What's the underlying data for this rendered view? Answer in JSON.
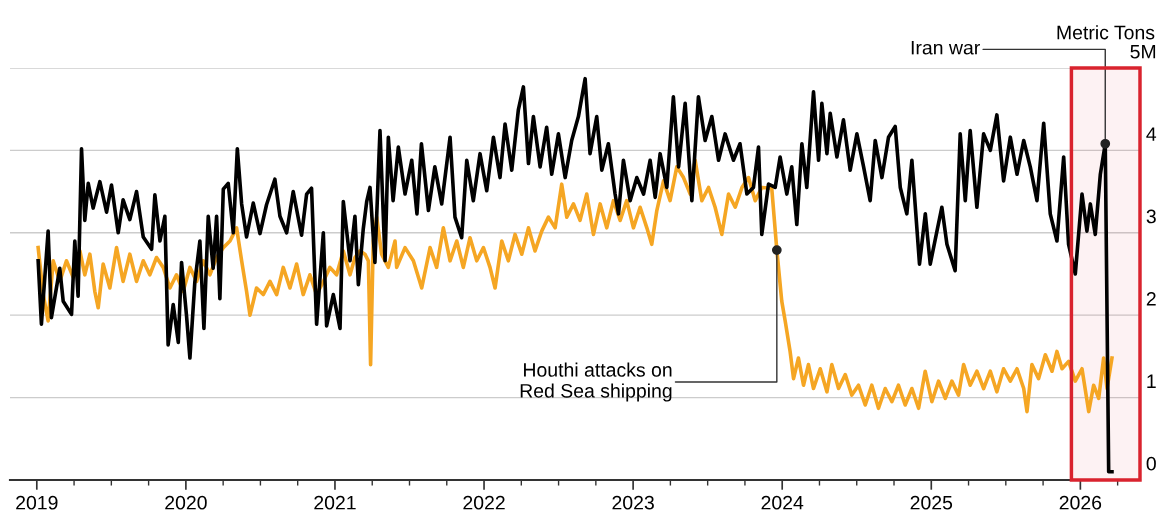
{
  "chart_data": {
    "type": "line",
    "ylabel": "Metric Tons",
    "xlim": [
      2018.82,
      2026.4
    ],
    "ylim": [
      0,
      5
    ],
    "xticks": [
      2019,
      {
        "value": 2019.25,
        "label": null
      },
      {
        "value": 2019.5,
        "label": null
      },
      {
        "value": 2019.75,
        "label": null
      },
      2020,
      {
        "value": 2020.25,
        "label": null
      },
      {
        "value": 2020.5,
        "label": null
      },
      {
        "value": 2020.75,
        "label": null
      },
      2021,
      {
        "value": 2021.25,
        "label": null
      },
      {
        "value": 2021.5,
        "label": null
      },
      {
        "value": 2021.75,
        "label": null
      },
      2022,
      {
        "value": 2022.25,
        "label": null
      },
      {
        "value": 2022.5,
        "label": null
      },
      {
        "value": 2022.75,
        "label": null
      },
      2023,
      {
        "value": 2023.25,
        "label": null
      },
      {
        "value": 2023.5,
        "label": null
      },
      {
        "value": 2023.75,
        "label": null
      },
      2024,
      {
        "value": 2024.25,
        "label": null
      },
      {
        "value": 2024.5,
        "label": null
      },
      {
        "value": 2024.75,
        "label": null
      },
      2025,
      {
        "value": 2025.25,
        "label": null
      },
      {
        "value": 2025.5,
        "label": null
      },
      {
        "value": 2025.75,
        "label": null
      },
      2026,
      {
        "value": 2026.25,
        "label": null
      }
    ],
    "yticks": [
      0,
      1,
      2,
      3,
      4,
      {
        "value": 5,
        "label": "5M"
      }
    ],
    "grid": "y",
    "legend": false,
    "marker": "none",
    "line_style": "solid",
    "bands": [
      {
        "axis": "x",
        "from": 2025.94,
        "to": 2026.4,
        "label": null,
        "color": "#d9232e"
      }
    ],
    "annotations": [
      {
        "text": "Houthi attacks on\nRed Sea shipping",
        "x": 2023.964,
        "y": 2.79
      },
      {
        "text": "Iran war",
        "x": 2026.167,
        "y": 4.08
      }
    ],
    "series": [
      {
        "color": "#f5a623",
        "x": [
          2019.009,
          2019.043,
          2019.076,
          2019.11,
          2019.154,
          2019.199,
          2019.244,
          2019.289,
          2019.322,
          2019.356,
          2019.389,
          2019.412,
          2019.445,
          2019.49,
          2019.535,
          2019.579,
          2019.624,
          2019.669,
          2019.714,
          2019.758,
          2019.803,
          2019.848,
          2019.893,
          2019.937,
          2019.982,
          2020.027,
          2020.072,
          2020.116,
          2020.161,
          2020.206,
          2020.251,
          2020.296,
          2020.34,
          2020.374,
          2020.407,
          2020.43,
          2020.474,
          2020.519,
          2020.564,
          2020.609,
          2020.653,
          2020.698,
          2020.743,
          2020.787,
          2020.832,
          2020.877,
          2020.922,
          2020.966,
          2021.011,
          2021.056,
          2021.101,
          2021.134,
          2021.168,
          2021.201,
          2021.224,
          2021.239,
          2021.257,
          2021.28,
          2021.313,
          2021.358,
          2021.403,
          2021.414,
          2021.47,
          2021.526,
          2021.582,
          2021.638,
          2021.682,
          2021.727,
          2021.772,
          2021.817,
          2021.861,
          2021.906,
          2021.951,
          2021.996,
          2022.04,
          2022.074,
          2022.119,
          2022.163,
          2022.208,
          2022.253,
          2022.298,
          2022.342,
          2022.387,
          2022.432,
          2022.477,
          2022.521,
          2022.555,
          2022.6,
          2022.644,
          2022.689,
          2022.734,
          2022.779,
          2022.823,
          2022.868,
          2022.913,
          2022.957,
          2023.002,
          2023.047,
          2023.092,
          2023.125,
          2023.159,
          2023.204,
          2023.248,
          2023.293,
          2023.338,
          2023.383,
          2023.416,
          2023.461,
          2023.506,
          2023.55,
          2023.595,
          2023.64,
          2023.685,
          2023.73,
          2023.774,
          2023.819,
          2023.863,
          2023.93,
          2023.964,
          2023.997,
          2024.02,
          2024.053,
          2024.076,
          2024.109,
          2024.143,
          2024.176,
          2024.21,
          2024.255,
          2024.3,
          2024.333,
          2024.378,
          2024.423,
          2024.467,
          2024.512,
          2024.557,
          2024.601,
          2024.646,
          2024.691,
          2024.736,
          2024.78,
          2024.825,
          2024.87,
          2024.915,
          2024.959,
          2025.004,
          2025.049,
          2025.094,
          2025.138,
          2025.183,
          2025.217,
          2025.261,
          2025.306,
          2025.351,
          2025.396,
          2025.44,
          2025.485,
          2025.53,
          2025.575,
          2025.62,
          2025.642,
          2025.675,
          2025.72,
          2025.765,
          2025.81,
          2025.843,
          2025.877,
          2025.921,
          2025.966,
          2026.011,
          2026.056,
          2026.089,
          2026.123,
          2026.156,
          2026.179,
          2026.212
        ],
        "values": [
          2.82,
          2.25,
          1.93,
          2.66,
          2.41,
          2.66,
          2.46,
          2.78,
          2.49,
          2.74,
          2.29,
          2.09,
          2.62,
          2.33,
          2.82,
          2.41,
          2.74,
          2.41,
          2.66,
          2.49,
          2.7,
          2.58,
          2.33,
          2.49,
          2.29,
          2.58,
          2.41,
          2.66,
          2.49,
          2.7,
          2.82,
          2.9,
          3.06,
          2.66,
          2.29,
          2.0,
          2.33,
          2.25,
          2.41,
          2.25,
          2.58,
          2.33,
          2.62,
          2.25,
          2.49,
          2.25,
          2.41,
          2.58,
          2.49,
          2.78,
          2.49,
          2.7,
          2.78,
          2.74,
          2.66,
          1.4,
          2.9,
          3.19,
          2.74,
          2.58,
          2.9,
          2.58,
          2.82,
          2.66,
          2.33,
          2.82,
          2.58,
          3.06,
          2.66,
          2.9,
          2.58,
          2.94,
          2.66,
          2.82,
          2.58,
          2.33,
          2.9,
          2.66,
          2.98,
          2.74,
          3.06,
          2.78,
          3.02,
          3.19,
          3.06,
          3.59,
          3.19,
          3.35,
          3.15,
          3.47,
          2.98,
          3.35,
          3.06,
          3.39,
          3.15,
          3.39,
          3.06,
          3.31,
          3.06,
          2.86,
          3.27,
          3.63,
          3.39,
          3.8,
          3.67,
          3.47,
          3.88,
          3.39,
          3.55,
          3.31,
          2.98,
          3.47,
          3.31,
          3.55,
          3.67,
          3.39,
          3.55,
          3.54,
          2.79,
          2.17,
          1.93,
          1.56,
          1.23,
          1.48,
          1.15,
          1.4,
          1.11,
          1.35,
          1.07,
          1.4,
          1.11,
          1.28,
          1.03,
          1.15,
          0.91,
          1.15,
          0.87,
          1.11,
          0.95,
          1.15,
          0.91,
          1.11,
          0.87,
          1.32,
          0.95,
          1.2,
          0.99,
          1.2,
          1.03,
          1.4,
          1.15,
          1.32,
          1.11,
          1.32,
          1.07,
          1.35,
          1.2,
          1.35,
          1.11,
          0.83,
          1.4,
          1.23,
          1.52,
          1.32,
          1.56,
          1.35,
          1.44,
          1.2,
          1.35,
          0.83,
          1.15,
          0.99,
          1.48,
          1.11,
          1.48
        ]
      },
      {
        "color": "#000000",
        "x": [
          2019.009,
          2019.031,
          2019.076,
          2019.098,
          2019.154,
          2019.177,
          2019.233,
          2019.255,
          2019.277,
          2019.3,
          2019.322,
          2019.345,
          2019.378,
          2019.423,
          2019.468,
          2019.501,
          2019.546,
          2019.579,
          2019.624,
          2019.669,
          2019.714,
          2019.77,
          2019.792,
          2019.826,
          2019.859,
          2019.881,
          2019.915,
          2019.949,
          2019.971,
          2020.004,
          2020.027,
          2020.06,
          2020.094,
          2020.121,
          2020.15,
          2020.183,
          2020.206,
          2020.228,
          2020.251,
          2020.284,
          2020.318,
          2020.345,
          2020.374,
          2020.407,
          2020.452,
          2020.497,
          2020.541,
          2020.597,
          2020.631,
          2020.676,
          2020.72,
          2020.776,
          2020.81,
          2020.843,
          2020.877,
          2020.922,
          2020.944,
          2020.989,
          2021.034,
          2021.056,
          2021.101,
          2021.134,
          2021.157,
          2021.19,
          2021.213,
          2021.235,
          2021.268,
          2021.302,
          2021.336,
          2021.358,
          2021.39,
          2021.425,
          2021.47,
          2021.515,
          2021.55,
          2021.58,
          2021.627,
          2021.67,
          2021.716,
          2021.772,
          2021.805,
          2021.85,
          2021.884,
          2021.928,
          2021.973,
          2022.018,
          2022.063,
          2022.107,
          2022.141,
          2022.186,
          2022.23,
          2022.264,
          2022.298,
          2022.331,
          2022.376,
          2022.42,
          2022.454,
          2022.499,
          2022.544,
          2022.588,
          2022.633,
          2022.678,
          2022.711,
          2022.756,
          2022.79,
          2022.834,
          2022.879,
          2022.902,
          2022.935,
          2022.98,
          2023.025,
          2023.07,
          2023.114,
          2023.148,
          2023.181,
          2023.226,
          2023.27,
          2023.305,
          2023.349,
          2023.394,
          2023.438,
          2023.483,
          2023.528,
          2023.573,
          2023.617,
          2023.673,
          2023.717,
          2023.763,
          2023.807,
          2023.841,
          2023.863,
          2023.908,
          2023.953,
          2023.986,
          2024.031,
          2024.064,
          2024.098,
          2024.132,
          2024.165,
          2024.21,
          2024.244,
          2024.266,
          2024.3,
          2024.322,
          2024.367,
          2024.411,
          2024.456,
          2024.501,
          2024.546,
          2024.59,
          2024.624,
          2024.669,
          2024.713,
          2024.758,
          2024.792,
          2024.836,
          2024.87,
          2024.921,
          2024.96,
          2024.993,
          2025.038,
          2025.071,
          2025.105,
          2025.16,
          2025.194,
          2025.228,
          2025.261,
          2025.306,
          2025.351,
          2025.396,
          2025.44,
          2025.485,
          2025.53,
          2025.575,
          2025.62,
          2025.664,
          2025.709,
          2025.754,
          2025.798,
          2025.843,
          2025.888,
          2025.921,
          2025.966,
          2026.011,
          2026.044,
          2026.067,
          2026.1,
          2026.134,
          2026.167,
          2026.19,
          2026.212
        ],
        "values": [
          2.66,
          1.89,
          3.02,
          1.97,
          2.57,
          2.17,
          2.01,
          2.9,
          2.23,
          4.02,
          3.15,
          3.6,
          3.3,
          3.62,
          3.25,
          3.58,
          3.0,
          3.4,
          3.16,
          3.5,
          2.95,
          2.8,
          3.46,
          2.9,
          3.2,
          1.64,
          2.13,
          1.67,
          2.64,
          2.0,
          1.48,
          2.4,
          2.9,
          1.84,
          3.2,
          2.57,
          3.2,
          2.2,
          3.53,
          3.6,
          3.0,
          4.02,
          3.35,
          2.95,
          3.36,
          2.99,
          3.34,
          3.65,
          3.2,
          3.0,
          3.5,
          2.97,
          3.47,
          3.54,
          1.89,
          3.0,
          1.87,
          2.25,
          1.84,
          3.38,
          2.66,
          3.2,
          2.37,
          3.05,
          3.38,
          3.55,
          2.64,
          4.24,
          2.66,
          4.16,
          3.39,
          4.04,
          3.47,
          3.88,
          3.23,
          4.08,
          3.27,
          3.8,
          3.35,
          4.16,
          3.19,
          2.94,
          3.88,
          3.39,
          3.96,
          3.51,
          4.16,
          3.67,
          4.32,
          3.76,
          4.49,
          4.77,
          3.84,
          4.41,
          3.8,
          4.28,
          3.71,
          4.2,
          3.67,
          4.12,
          4.41,
          4.87,
          3.96,
          4.41,
          3.76,
          4.08,
          3.47,
          3.23,
          3.88,
          3.39,
          3.67,
          3.47,
          3.88,
          3.43,
          3.96,
          3.55,
          4.65,
          3.8,
          4.57,
          3.39,
          4.65,
          4.12,
          4.41,
          3.88,
          4.2,
          3.88,
          4.08,
          3.47,
          3.55,
          4.04,
          2.98,
          3.59,
          3.55,
          3.92,
          3.47,
          3.8,
          3.1,
          4.08,
          3.55,
          4.71,
          3.88,
          4.57,
          3.96,
          4.45,
          3.92,
          4.37,
          3.76,
          4.2,
          3.8,
          3.39,
          4.12,
          3.67,
          4.16,
          4.29,
          3.55,
          3.23,
          3.88,
          2.62,
          3.23,
          2.62,
          3.02,
          3.31,
          2.86,
          2.54,
          4.2,
          3.39,
          4.24,
          3.31,
          4.2,
          4.0,
          4.43,
          3.63,
          4.16,
          3.71,
          4.12,
          3.8,
          3.39,
          4.33,
          3.23,
          2.9,
          3.92,
          2.86,
          2.5,
          3.47,
          3.02,
          3.35,
          2.98,
          3.71,
          4.08,
          0.1,
          0.1
        ]
      }
    ]
  }
}
